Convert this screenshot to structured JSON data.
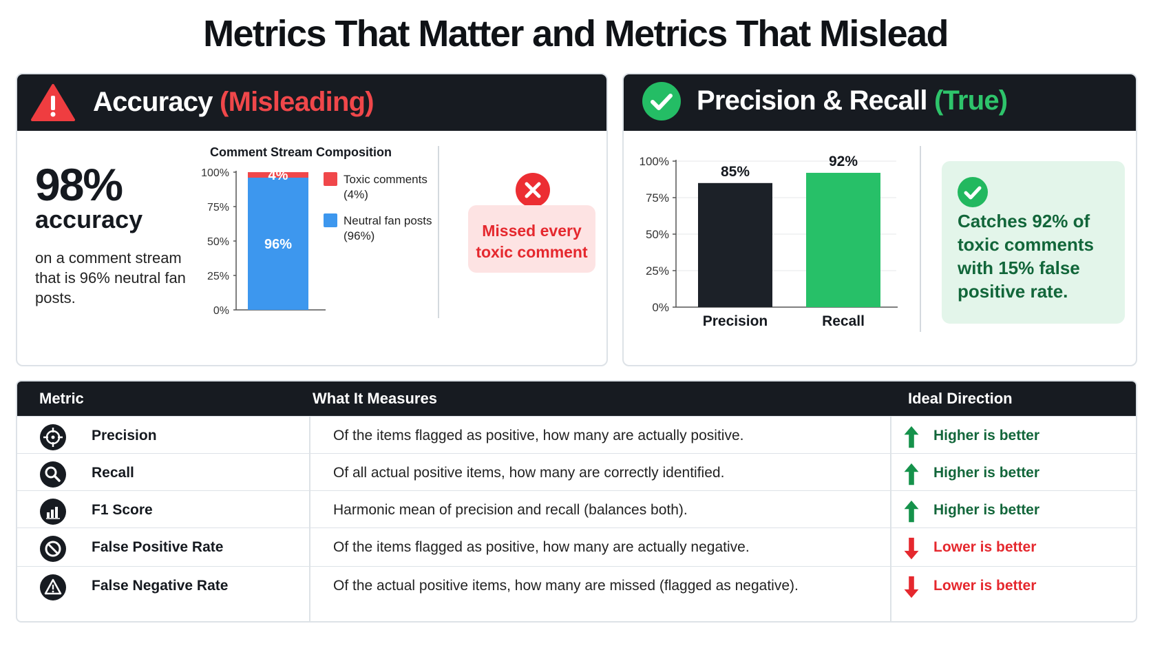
{
  "title": "Metrics That Matter and Metrics That Mislead",
  "left_panel": {
    "title_main": "Accuracy",
    "title_tag": "(Misleading)",
    "icon": "warning-triangle-icon",
    "big_number": "98%",
    "big_word": "accuracy",
    "description": "on a comment stream that is 96% neutral fan posts.",
    "missed_label": "Missed every toxic comment",
    "missed_icon": "x-circle-icon"
  },
  "right_panel": {
    "title_main": "Precision & Recall",
    "title_tag": "(True)",
    "icon": "check-circle-icon",
    "callout": "Catches 92% of toxic comments with 15% false positive rate.",
    "callout_icon": "check-circle-icon"
  },
  "colors": {
    "dark": "#171b21",
    "red": "#f0474a",
    "blue": "#3d97ee",
    "green": "#27c068",
    "dark_green": "#12663a",
    "arrow_green": "#15924b",
    "arrow_red": "#e5282e"
  },
  "chart_data": [
    {
      "type": "bar",
      "stacked": true,
      "title": "Comment Stream Composition",
      "categories": [
        ""
      ],
      "series": [
        {
          "name": "Neutral fan posts",
          "legend_label": "Neutral fan posts",
          "legend_value": "(96%)",
          "values": [
            96
          ],
          "label": "96%",
          "color": "#3d97ee"
        },
        {
          "name": "Toxic comments",
          "legend_label": "Toxic comments",
          "legend_value": "(4%)",
          "values": [
            4
          ],
          "label": "4%",
          "color": "#f0474a"
        }
      ],
      "ylim": [
        0,
        100
      ],
      "yticks": [
        "0%",
        "25%",
        "50%",
        "75%",
        "100%"
      ],
      "legend_position": "right"
    },
    {
      "type": "bar",
      "categories": [
        "Precision",
        "Recall"
      ],
      "values": [
        85,
        92
      ],
      "labels": [
        "85%",
        "92%"
      ],
      "colors": [
        "#1c2128",
        "#27c068"
      ],
      "ylim": [
        0,
        100
      ],
      "yticks": [
        "0%",
        "25%",
        "50%",
        "75%",
        "100%"
      ],
      "grid": true
    }
  ],
  "table": {
    "headers": [
      "Metric",
      "What It Measures",
      "Ideal Direction"
    ],
    "rows": [
      {
        "icon": "crosshair-icon",
        "metric": "Precision",
        "measures": "Of the items flagged as positive, how many are actually positive.",
        "direction": "Higher is better",
        "dir": "up"
      },
      {
        "icon": "magnifier-icon",
        "metric": "Recall",
        "measures": "Of all actual positive items, how many are correctly identified.",
        "direction": "Higher is better",
        "dir": "up"
      },
      {
        "icon": "bar-chart-icon",
        "metric": "F1 Score",
        "measures": "Harmonic mean of precision and recall (balances both).",
        "direction": "Higher is better",
        "dir": "up"
      },
      {
        "icon": "prohibited-icon",
        "metric": "False Positive Rate",
        "measures": "Of the items flagged as positive, how many are actually negative.",
        "direction": "Lower is better",
        "dir": "down"
      },
      {
        "icon": "warning-icon",
        "metric": "False Negative Rate",
        "measures": "Of the actual positive items, how many are missed (flagged as negative).",
        "direction": "Lower is better",
        "dir": "down"
      }
    ]
  }
}
